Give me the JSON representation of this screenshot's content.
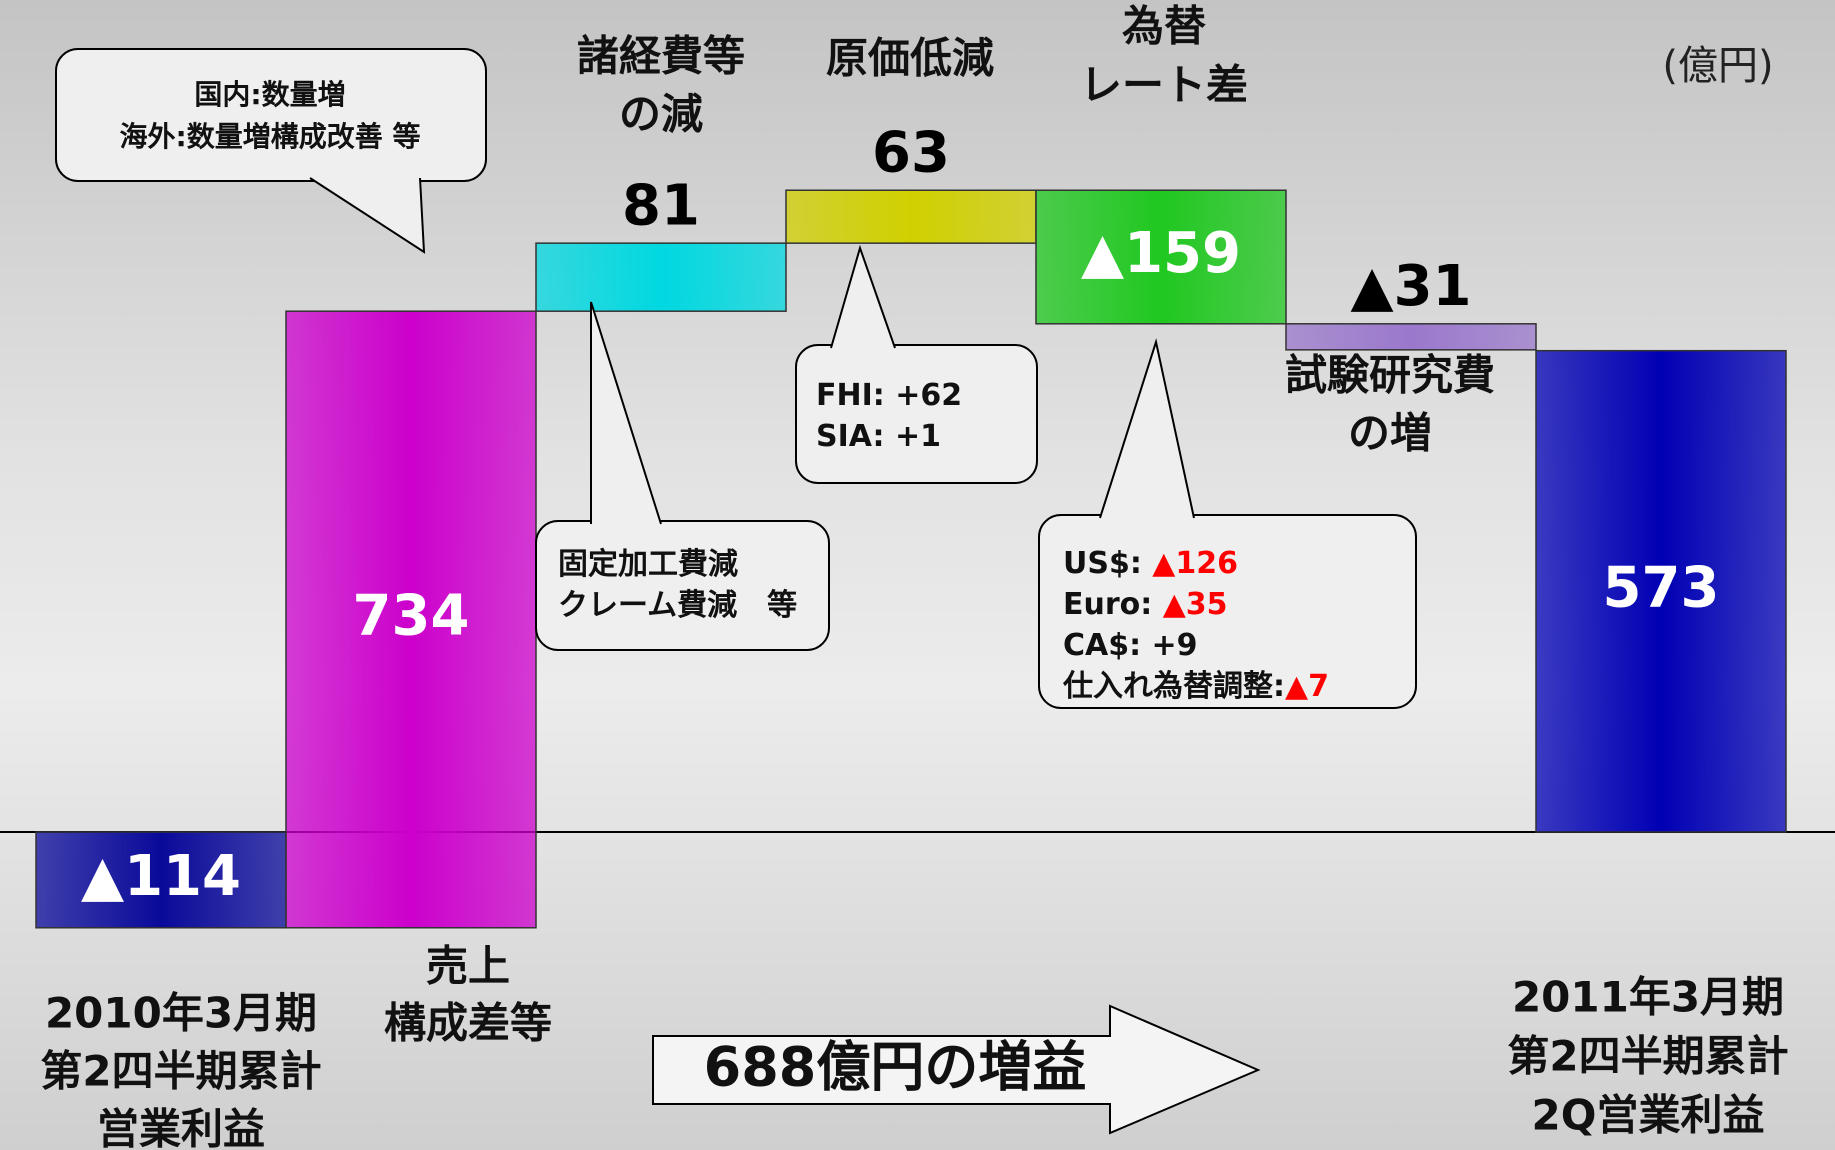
{
  "chart_data": {
    "type": "waterfall",
    "unit_label": "(億円)",
    "categories": [
      [
        "2010年3月期",
        "第2四半期累計",
        "営業利益"
      ],
      [
        "売上",
        "構成差等"
      ],
      [
        "諸経費等",
        "の減"
      ],
      [
        "原価低減"
      ],
      [
        "為替",
        "レート差"
      ],
      [
        "試験研究費",
        "の増"
      ],
      [
        "2011年3月期",
        "第2四半期累計",
        "2Q営業利益"
      ]
    ],
    "values": [
      -114,
      734,
      81,
      63,
      -159,
      -31,
      573
    ],
    "value_labels": [
      "▲114",
      "734",
      "81",
      "63",
      "▲159",
      "▲31",
      "573"
    ],
    "colors": [
      "#0a0a9a",
      "#cc00cc",
      "#00d8e0",
      "#d0d000",
      "#20c820",
      "#9a78cc",
      "#0000b4"
    ],
    "summary": "688億円の増益",
    "highlight_color": "#ff0000",
    "annotations": [
      {
        "lines": [
          [
            "国内:数量増"
          ],
          [
            "海外:数量増構成改善 等"
          ]
        ]
      },
      {
        "lines": [
          [
            "固定加工費減"
          ],
          [
            "クレーム費減　等"
          ]
        ]
      },
      {
        "lines": [
          [
            "FHI: +62"
          ],
          [
            "SIA: +1"
          ]
        ]
      },
      {
        "lines": [
          [
            "US$: ",
            "▲126"
          ],
          [
            "Euro: ",
            "▲35"
          ],
          [
            "CA$: +9"
          ],
          [
            "仕入れ為替調整:",
            "▲7"
          ]
        ]
      }
    ]
  }
}
